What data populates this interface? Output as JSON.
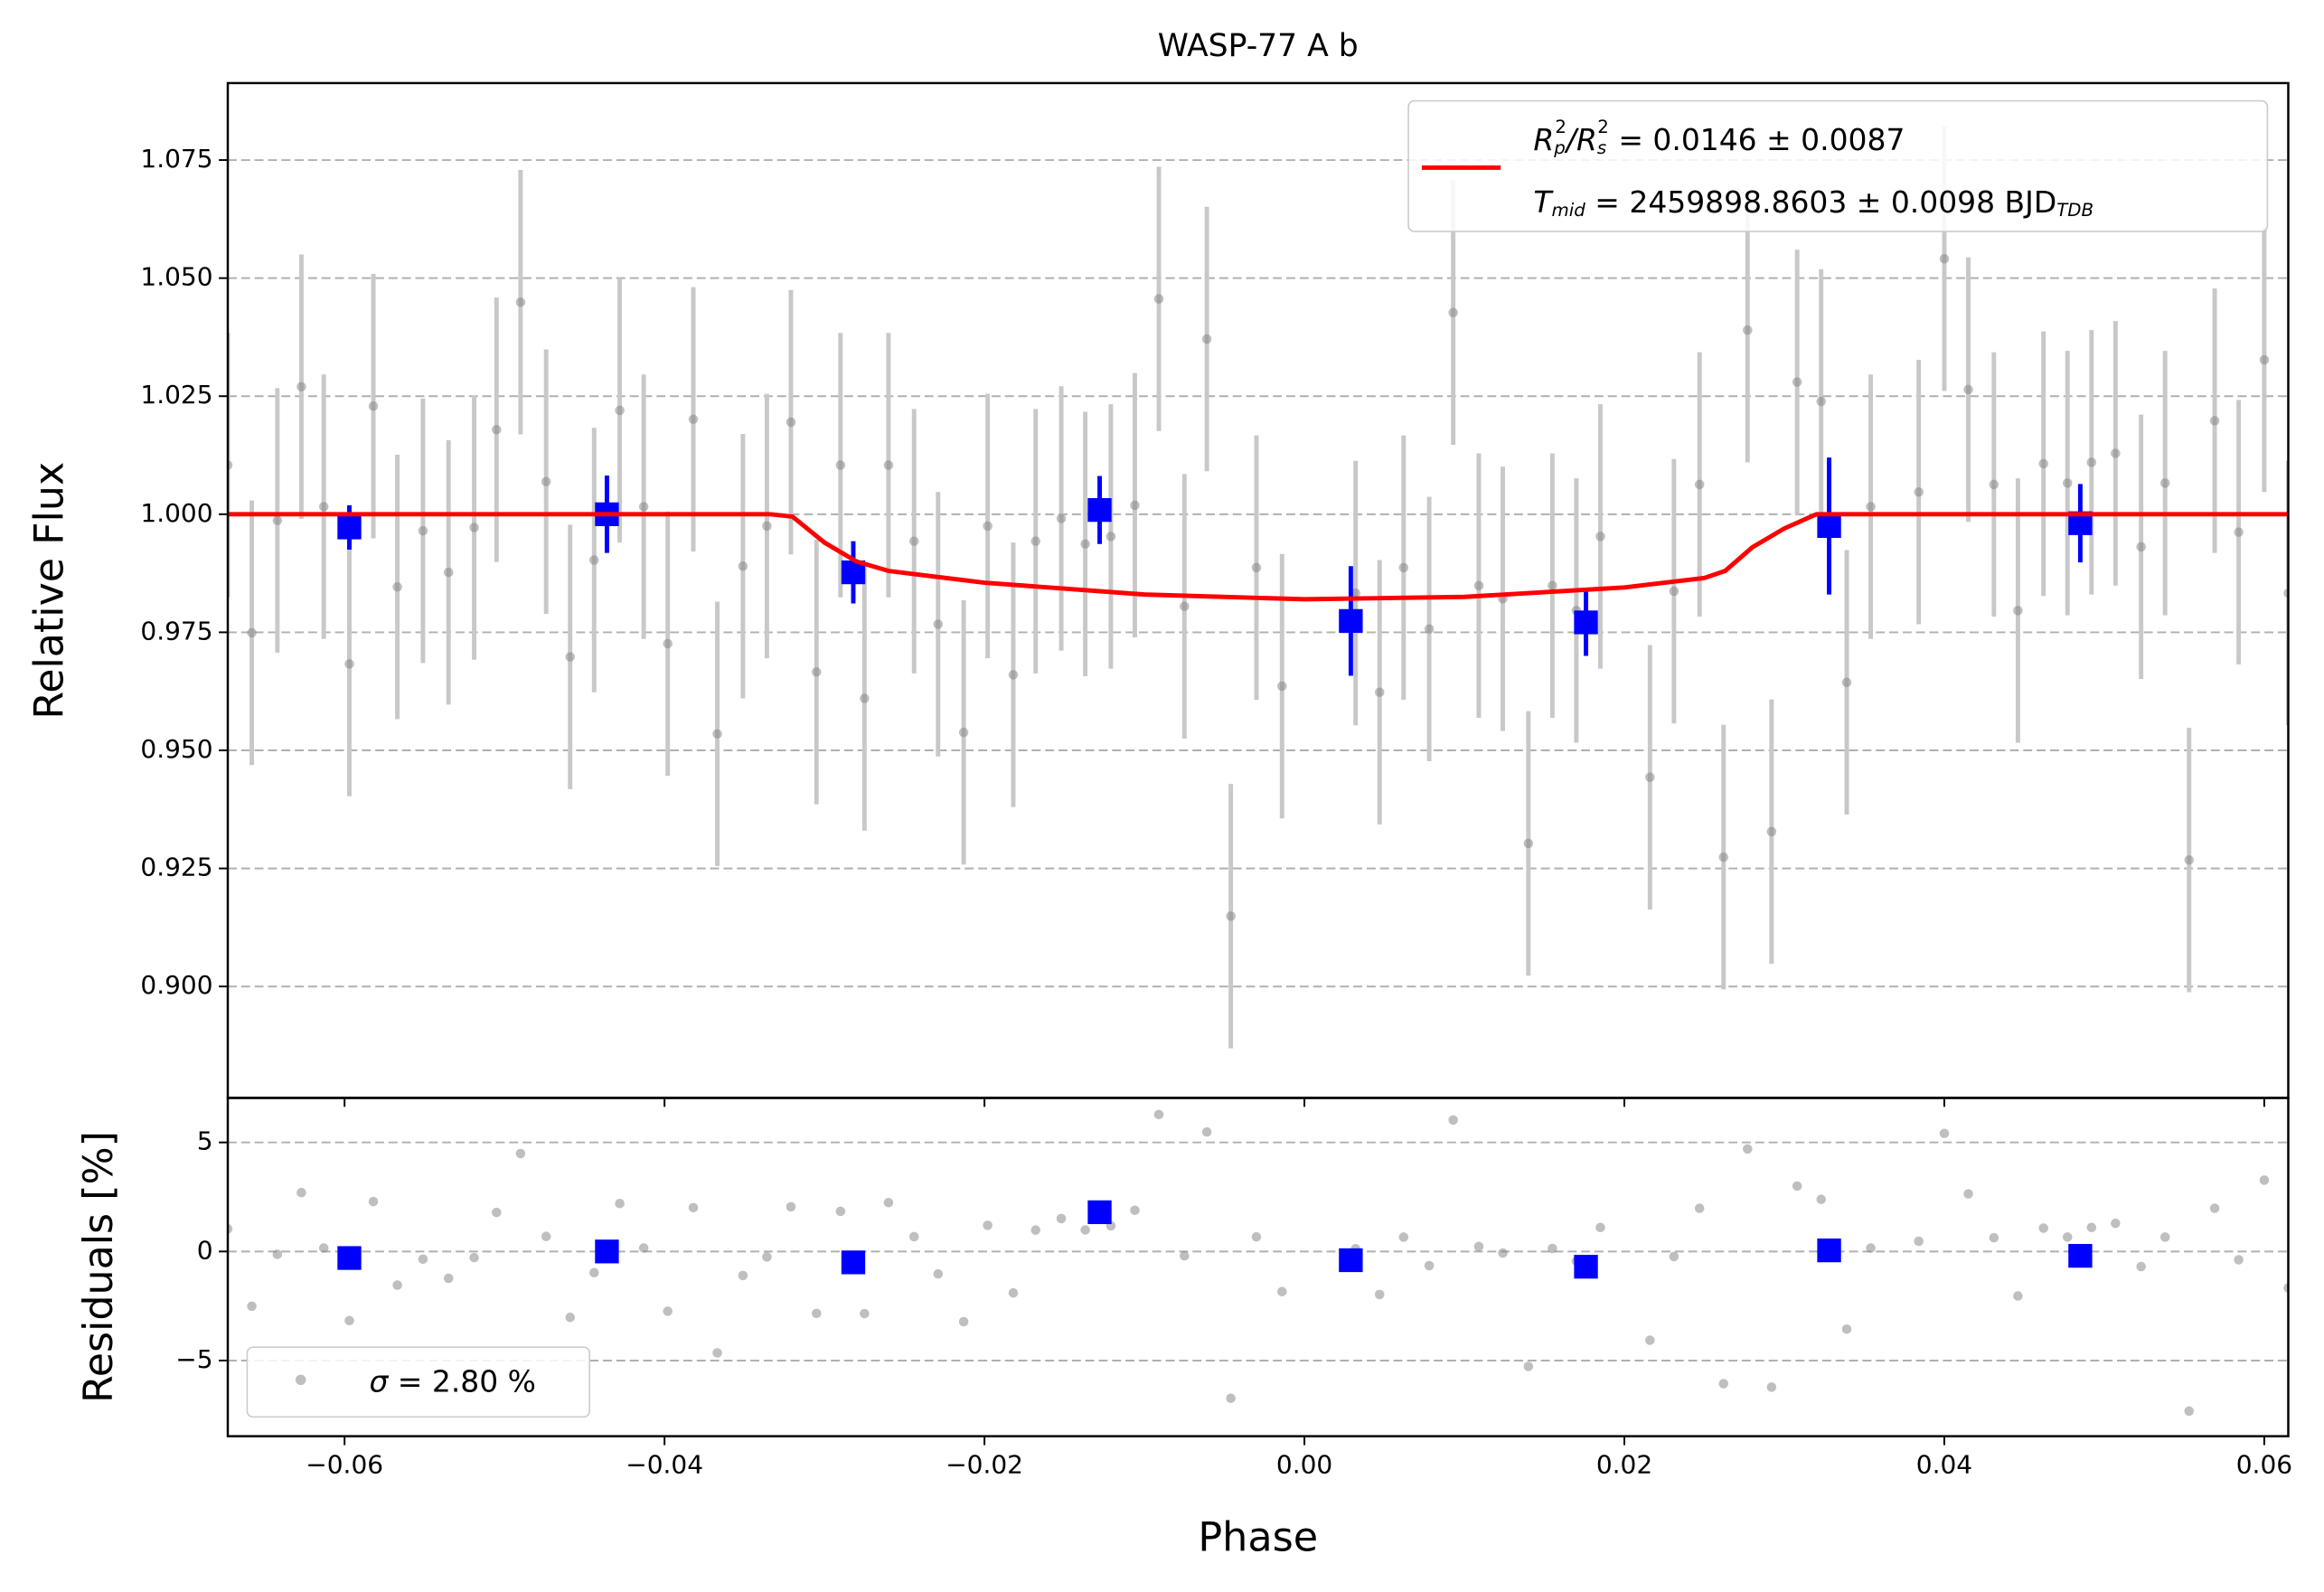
{
  "chart_data": [
    {
      "type": "scatter",
      "title": "WASP-77 A b",
      "ylabel": "Relative Flux",
      "xlim": [
        -0.0673,
        0.0615
      ],
      "ylim": [
        0.8764,
        1.0913
      ],
      "yticks": [
        {
          "value": 0.9,
          "label": "0.900"
        },
        0.925,
        {
          "value": 0.95,
          "label": "0.950"
        },
        0.975,
        {
          "value": 1.0,
          "label": "1.000"
        },
        1.025,
        {
          "value": 1.05,
          "label": "1.050"
        },
        1.075
      ],
      "grid": true,
      "series": [
        {
          "color": "#808080",
          "x": [
            -0.0673,
            -0.0658,
            -0.0642,
            -0.0627,
            -0.0613,
            -0.0597,
            -0.0582,
            -0.0567,
            -0.0551,
            -0.0535,
            -0.0519,
            -0.0505,
            -0.049,
            -0.0474,
            -0.0459,
            -0.0444,
            -0.0428,
            -0.0413,
            -0.0398,
            -0.0382,
            -0.0367,
            -0.0351,
            -0.0336,
            -0.0321,
            -0.0305,
            -0.029,
            -0.0275,
            -0.026,
            -0.0244,
            -0.0229,
            -0.0213,
            -0.0198,
            -0.0182,
            -0.0168,
            -0.0152,
            -0.0137,
            -0.0121,
            -0.0106,
            -0.0091,
            -0.0075,
            -0.0061,
            -0.0046,
            -0.003,
            -0.0014,
            0.0032,
            0.0047,
            0.0062,
            0.0078,
            0.0093,
            0.0109,
            0.0124,
            0.014,
            0.0155,
            0.017,
            0.0185,
            0.0216,
            0.0231,
            0.0247,
            0.0262,
            0.0277,
            0.0292,
            0.0308,
            0.0323,
            0.0339,
            0.0354,
            0.0384,
            0.04,
            0.0415,
            0.0431,
            0.0446,
            0.0462,
            0.0477,
            0.0492,
            0.0507,
            0.0523,
            0.0538,
            0.0553,
            0.0569,
            0.0584,
            0.06,
            0.0615
          ],
          "values": [
            1.0104,
            0.9749,
            0.9987,
            1.027,
            1.0016,
            0.9683,
            1.0229,
            0.9846,
            0.9965,
            0.9877,
            0.9972,
            1.0179,
            1.0449,
            1.0069,
            0.9698,
            0.9903,
            1.022,
            1.0016,
            0.9726,
            1.0201,
            0.9535,
            0.989,
            0.9975,
            1.0195,
            0.9666,
            1.0104,
            0.961,
            1.0104,
            0.9943,
            0.9767,
            0.9538,
            0.9975,
            0.966,
            0.9943,
            0.9991,
            0.9937,
            0.9953,
            1.0019,
            1.0456,
            0.9805,
            1.0371,
            0.9149,
            0.9887,
            0.9636,
            0.9833,
            0.9623,
            0.9887,
            0.9757,
            1.0427,
            0.9849,
            0.9821,
            0.9303,
            0.9849,
            0.9796,
            0.9953,
            0.9443,
            0.9837,
            1.0063,
            0.9274,
            1.039,
            0.9328,
            1.028,
            1.0239,
            0.9644,
            1.0016,
            1.0047,
            1.0541,
            1.0264,
            1.0063,
            0.9796,
            1.0107,
            1.0066,
            1.011,
            1.0129,
            0.9931,
            1.0066,
            0.9268,
            1.0198,
            0.9962,
            1.0327,
            0.9833
          ],
          "errors": [
            0.028,
            0.028,
            0.028,
            0.028,
            0.028,
            0.028,
            0.028,
            0.028,
            0.028,
            0.028,
            0.028,
            0.028,
            0.028,
            0.028,
            0.028,
            0.028,
            0.028,
            0.028,
            0.028,
            0.028,
            0.028,
            0.028,
            0.028,
            0.028,
            0.028,
            0.028,
            0.028,
            0.028,
            0.028,
            0.028,
            0.028,
            0.028,
            0.028,
            0.028,
            0.028,
            0.028,
            0.028,
            0.028,
            0.028,
            0.028,
            0.028,
            0.028,
            0.028,
            0.028,
            0.028,
            0.028,
            0.028,
            0.028,
            0.028,
            0.028,
            0.028,
            0.028,
            0.028,
            0.028,
            0.028,
            0.028,
            0.028,
            0.028,
            0.028,
            0.028,
            0.028,
            0.028,
            0.028,
            0.028,
            0.028,
            0.028,
            0.028,
            0.028,
            0.028,
            0.028,
            0.028,
            0.028,
            0.028,
            0.028,
            0.028,
            0.028,
            0.028,
            0.028,
            0.028,
            0.028,
            0.028
          ]
        },
        {
          "color": "#0000ff",
          "x": [
            -0.0597,
            -0.0436,
            -0.0282,
            -0.0128,
            0.0029,
            0.0176,
            0.0328,
            0.0485
          ],
          "values": [
            0.9972,
            1.0,
            0.9877,
            1.0009,
            0.9774,
            0.9771,
            0.9975,
            0.9981
          ],
          "errors": [
            0.0047,
            0.0082,
            0.0066,
            0.0072,
            0.0116,
            0.0071,
            0.0145,
            0.0083
          ]
        }
      ],
      "model": {
        "color": "#ff0000",
        "name": [
          [
            "R",
            "p",
            "2",
            "/R",
            "s",
            "2",
            " = 0.0146 ± 0.0087"
          ],
          [
            "T",
            "mid",
            " = 2459898.8603 ± 0.0098 BJD",
            "TDB"
          ]
        ],
        "x": [
          -0.0673,
          -0.0334,
          -0.032,
          -0.03,
          -0.028,
          -0.026,
          -0.02,
          -0.01,
          0.0,
          0.01,
          0.02,
          0.025,
          0.0263,
          0.028,
          0.03,
          0.032,
          0.0615
        ],
        "values": [
          1.0,
          1.0,
          0.9995,
          0.994,
          0.99,
          0.988,
          0.9855,
          0.983,
          0.982,
          0.9825,
          0.9845,
          0.9865,
          0.988,
          0.993,
          0.997,
          1.0,
          1.0
        ]
      }
    },
    {
      "type": "scatter",
      "xlabel": "Phase",
      "ylabel": "Residuals [%]",
      "xlim": [
        -0.0673,
        0.0615
      ],
      "ylim": [
        -8.47,
        7.04
      ],
      "xticks": [
        {
          "value": -0.06,
          "label": "−0.06"
        },
        {
          "value": -0.04,
          "label": "−0.04"
        },
        {
          "value": -0.02,
          "label": "−0.02"
        },
        {
          "value": 0,
          "label": "0.00"
        },
        0.02,
        0.04,
        0.06
      ],
      "yticks": [
        {
          "value": -5,
          "label": "−5"
        },
        0,
        5
      ],
      "grid": true,
      "legend": "lower left",
      "series": [
        {
          "name": [
            "σ",
            " = 2.80 %"
          ],
          "color": "#808080",
          "values": [
            1.04,
            -2.51,
            -0.13,
            2.7,
            0.16,
            -3.17,
            2.29,
            -1.54,
            -0.35,
            -1.23,
            -0.28,
            1.79,
            4.49,
            0.69,
            -3.02,
            -0.97,
            2.2,
            0.16,
            -2.74,
            2.01,
            -4.65,
            -1.1,
            -0.25,
            2.05,
            -2.84,
            1.84,
            -2.85,
            2.24,
            0.68,
            -1.03,
            -3.22,
            1.2,
            -1.9,
            0.98,
            1.51,
            0.99,
            1.18,
            1.89,
            6.28,
            -0.2,
            5.48,
            -6.73,
            0.67,
            -1.84,
            0.13,
            -1.97,
            0.66,
            -0.65,
            6.03,
            0.23,
            -0.07,
            -5.27,
            0.14,
            -0.44,
            1.1,
            -4.07,
            -0.23,
            1.98,
            -6.06,
            4.7,
            -6.22,
            3.0,
            2.39,
            -3.56,
            0.16,
            0.47,
            5.41,
            2.64,
            0.63,
            -2.04,
            1.07,
            0.66,
            1.1,
            1.29,
            -0.69,
            0.66,
            -7.32,
            1.98,
            -0.38,
            3.27,
            -1.67
          ]
        },
        {
          "color": "#0000ff",
          "values": [
            -0.3,
            0.0,
            -0.5,
            1.8,
            -0.4,
            -0.7,
            0.05,
            -0.2
          ]
        }
      ]
    }
  ]
}
